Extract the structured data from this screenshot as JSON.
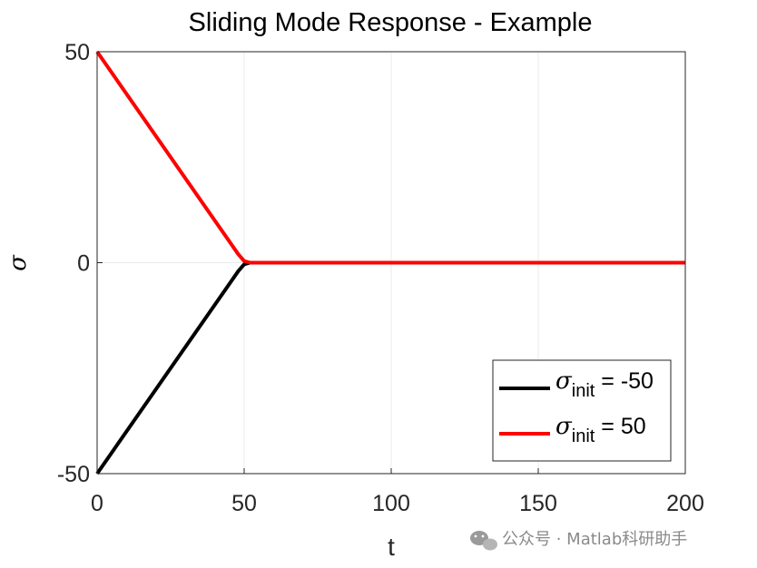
{
  "chart_data": {
    "type": "line",
    "title": "Sliding Mode Response - Example",
    "xlabel": "t",
    "ylabel": "σ",
    "xlim": [
      0,
      200
    ],
    "ylim": [
      -50,
      50
    ],
    "xticks": [
      "0",
      "50",
      "100",
      "150",
      "200"
    ],
    "yticks": [
      "-50",
      "0",
      "50"
    ],
    "grid": true,
    "legend_position": "bottom-right",
    "series": [
      {
        "name": "σ init = -50",
        "legend_symbol": "σ",
        "legend_sub": "init",
        "legend_value": " = -50",
        "color": "#000000",
        "x": [
          0,
          48,
          50,
          52,
          200
        ],
        "y": [
          -50,
          -2,
          -0.4,
          0,
          0
        ]
      },
      {
        "name": "σ init = 50",
        "legend_symbol": "σ",
        "legend_sub": "init",
        "legend_value": " = 50",
        "color": "#ff0000",
        "x": [
          0,
          48,
          50,
          52,
          200
        ],
        "y": [
          50,
          2,
          0.4,
          0,
          0
        ]
      }
    ]
  },
  "watermark": {
    "text": "公众号 · Matlab科研助手",
    "icon": "wechat-icon"
  }
}
